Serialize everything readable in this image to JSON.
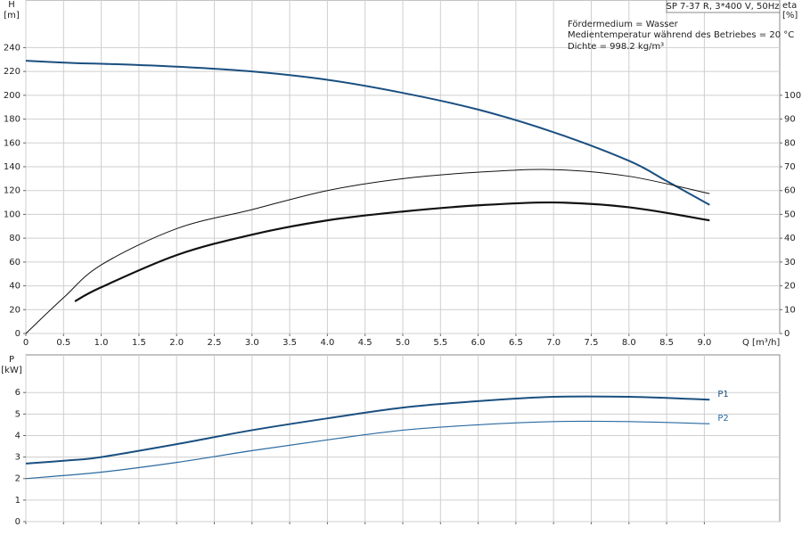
{
  "chart_data": [
    {
      "type": "line",
      "title": "SP 7-37 R, 3*400 V, 50Hz",
      "info": [
        "Fördermedium = Wasser",
        "Medientemperatur während des Betriebes = 20 °C",
        "Dichte = 998.2 kg/m³"
      ],
      "y_label": "H",
      "y_unit": "[m]",
      "y2_label": "eta",
      "y2_unit": "[%]",
      "x_label": "Q [m³/h]",
      "xlim": [
        0,
        10
      ],
      "xticks": [
        0,
        0.5,
        {
          "value": 1,
          "label": "1.0"
        },
        1.5,
        {
          "value": 2,
          "label": "2.0"
        },
        2.5,
        {
          "value": 3,
          "label": "3.0"
        },
        3.5,
        {
          "value": 4,
          "label": "4.0"
        },
        4.5,
        {
          "value": 5,
          "label": "5.0"
        },
        5.5,
        {
          "value": 6,
          "label": "6.0"
        },
        6.5,
        {
          "value": 7,
          "label": "7.0"
        },
        7.5,
        {
          "value": 8,
          "label": "8.0"
        },
        8.5,
        {
          "value": 9,
          "label": "9.0"
        }
      ],
      "ylim": [
        0,
        280
      ],
      "yticks": [
        0,
        20,
        40,
        60,
        80,
        100,
        120,
        140,
        160,
        180,
        200,
        220,
        240
      ],
      "y2lim": [
        0,
        140
      ],
      "y2ticks": [
        0,
        10,
        20,
        30,
        40,
        50,
        60,
        70,
        80,
        90,
        100
      ],
      "grid": true,
      "series": [
        {
          "color": "#1a4f80",
          "width": 2,
          "x": [
            0,
            0.65,
            1,
            2,
            3,
            4,
            5,
            6,
            7,
            8,
            8.5,
            9.07
          ],
          "values": [
            229,
            227,
            226.5,
            224,
            220,
            213,
            202,
            188,
            169,
            145,
            128,
            108
          ]
        },
        {
          "color": "#111111",
          "width": 1,
          "axis": "y2",
          "x": [
            0,
            0.5,
            1,
            2,
            3,
            4,
            5,
            6,
            7,
            8,
            9.07
          ],
          "values": [
            0,
            15,
            28.8,
            44,
            52,
            60,
            65,
            67.7,
            68.8,
            66,
            58.7
          ]
        },
        {
          "color": "#111111",
          "width": 2.2,
          "axis": "y2",
          "x": [
            0.65,
            1,
            2,
            3,
            4,
            5,
            6,
            7,
            8,
            9.07
          ],
          "values": [
            13.5,
            19.4,
            32.9,
            41.5,
            47.5,
            51.2,
            53.8,
            55,
            53,
            47.5
          ]
        }
      ]
    },
    {
      "type": "line",
      "y_label": "P",
      "y_unit": "[kW]",
      "xlim": [
        0,
        10
      ],
      "xticks": [
        0,
        0.5,
        1,
        1.5,
        2,
        2.5,
        3,
        3.5,
        4,
        4.5,
        5,
        5.5,
        6,
        6.5,
        7,
        7.5,
        8,
        8.5,
        9
      ],
      "show_xtick_labels": false,
      "ylim": [
        0,
        7.75
      ],
      "yticks": [
        0,
        1,
        2,
        3,
        4,
        5,
        6
      ],
      "grid": true,
      "series": [
        {
          "name": "P1",
          "color": "#1a4f80",
          "width": 2,
          "x": [
            0,
            0.65,
            1,
            2,
            3,
            4,
            5,
            6,
            7,
            8,
            9.07
          ],
          "values": [
            2.7,
            2.87,
            3.0,
            3.6,
            4.25,
            4.8,
            5.3,
            5.6,
            5.8,
            5.8,
            5.67
          ]
        },
        {
          "name": "P2",
          "color": "#2a6aa0",
          "width": 1.2,
          "x": [
            0,
            1,
            2,
            3,
            4,
            5,
            6,
            7,
            8,
            9.07
          ],
          "values": [
            2.0,
            2.3,
            2.75,
            3.3,
            3.8,
            4.25,
            4.5,
            4.65,
            4.65,
            4.55
          ]
        }
      ]
    }
  ]
}
